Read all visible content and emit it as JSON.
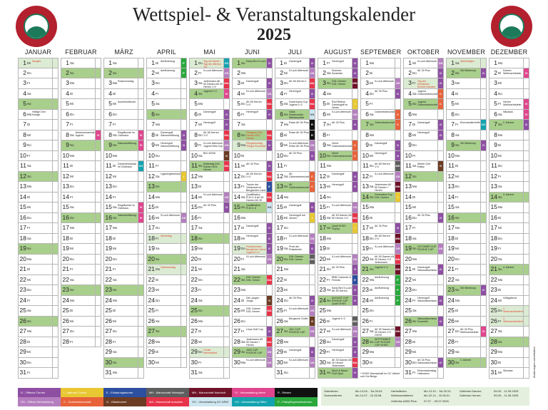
{
  "header": {
    "title": "Wettspiel- & Veranstaltungskalender",
    "year": "2025",
    "logo_text": "GOLFCLUB DREIBÄUMEN e.V."
  },
  "weekdays": [
    "So",
    "Mo",
    "Di",
    "Mi",
    "Do",
    "Fr",
    "Sa"
  ],
  "colors": {
    "sunday": "#a9cf8c",
    "holiday": "#dcebd3"
  },
  "categories": {
    "O": {
      "label": "O - Offenes Turnier",
      "color": "#8e4fa3"
    },
    "I": {
      "label": "I - Internes Turnier",
      "color": "#e8c832"
    },
    "E": {
      "label": "E - Einladungsturnier",
      "color": "#2c4fa0"
    },
    "MH": {
      "label": "MH - Mannschaft Heimspiel",
      "color": "#5e5e5e"
    },
    "MN": {
      "label": "MN - Mannschaft Nachholt",
      "color": "#6f1228"
    },
    "VI": {
      "label": "VI - Veranstaltung Intern",
      "color": "#e0468e"
    },
    "R": {
      "label": "R - Reisen",
      "color": "#111111"
    },
    "OS": {
      "label": "OS - Offene Seriewertung",
      "color": "#b57fbf"
    },
    "C": {
      "label": "C - Clubmeisterschaft",
      "color": "#e8623a"
    },
    "G": {
      "label": "G - Gästeturnier",
      "color": "#6b3b22"
    },
    "MA": {
      "label": "MA - Mannschaft auswärts",
      "color": "#e8334a"
    },
    "VG": {
      "label": "VG - Veranstaltung GV NRW",
      "color": "#cde6ef"
    },
    "VO": {
      "label": "VO - Veranstaltung Offen",
      "color": "#13a3b0"
    },
    "P": {
      "label": "P - Platzpflegemaßnahmen",
      "color": "#2aa83c"
    }
  },
  "legend_order": [
    "O",
    "I",
    "E",
    "MH",
    "MN",
    "VI",
    "R",
    "OS",
    "C",
    "G",
    "MA",
    "VG",
    "VO",
    "P"
  ],
  "months": [
    {
      "name": "JANUAR",
      "days": 31,
      "holidays": [
        1
      ],
      "events": {
        "1": [
          "Neujahr",
          "",
          true
        ],
        "6": [
          "Heilige Drei Könige",
          ""
        ]
      }
    },
    {
      "name": "FEBRUAR",
      "days": 28,
      "holidays": [],
      "events": {
        "8": [
          "Jahresversammlung Jugend",
          "VI"
        ]
      }
    },
    {
      "name": "MÄRZ",
      "days": 31,
      "holidays": [],
      "events": {
        "3": [
          "Rosenmontag",
          ""
        ],
        "5": [
          "Aschermittwoch",
          ""
        ],
        "8": [
          "Regelkunde im Clubhaus",
          "VI"
        ],
        "9": [
          "Saisoneröffnung",
          "VI"
        ],
        "11": [
          "Damenfrühstück im Clubhaus",
          "VO"
        ],
        "15": [
          "Regelkunde im Clubhaus",
          "VI"
        ],
        "16": [
          "Saisoneröffnung",
          "VI"
        ]
      }
    },
    {
      "name": "APRIL",
      "days": 30,
      "holidays": [
        18,
        21
      ],
      "events": {
        "1": [
          "Aerifizierung",
          "P"
        ],
        "2": [
          "Aerifizierung",
          "P"
        ],
        "8": [
          "Damengolf Saisoneröffnung",
          "O"
        ],
        "9": [
          "Herrengolf Saisoneröffnung",
          "O"
        ],
        "12": [
          "Ligavergleichsturnier",
          "I"
        ],
        "16": [
          "9-Loch Afterwork",
          "OS"
        ],
        "18": [
          "Karfreitag",
          "",
          true
        ],
        "21": [
          "Ostermontag",
          "",
          true
        ]
      }
    },
    {
      "name": "MAI",
      "days": 31,
      "holidays": [
        1,
        29
      ],
      "events": {
        "1": [
          "Tag der Arbeit / Tag der offenen Tür",
          "VO",
          true
        ],
        "2": [
          "9-Loch Afterwork",
          "OS"
        ],
        "3": [
          "Jedermann AK 50 Damen AK 50 Herren 1+2",
          "MA"
        ],
        "4": [
          "Jugend 1+2",
          "VI"
        ],
        "6": [
          "Damengolf",
          "O"
        ],
        "7": [
          "Herrengolf",
          "O"
        ],
        "8": [
          "AK 65 Herren 1+2",
          "MA"
        ],
        "9": [
          "9-Loch Afterwork Jugend Mini-Cup",
          "OS"
        ],
        "10": [
          "BIG-WOW",
          "G"
        ],
        "11": [
          "Muttertag DGL Damen DGL Herren",
          "MA"
        ],
        "14": [
          "9-Loch Afterwork",
          "OS"
        ],
        "15": [
          "AK 30 Plus",
          "O"
        ],
        "29": [
          "Christi Himmelfahrt",
          "",
          true
        ]
      }
    },
    {
      "name": "JUNI",
      "days": 30,
      "holidays": [
        9,
        19
      ],
      "events": {
        "1": [
          "Early Bird 9-Loch",
          "O"
        ],
        "3": [
          "Damengolf",
          "O"
        ],
        "4": [
          "9-Loch Afterwork",
          "OS"
        ],
        "5": [
          "AK 65 Herren 1+2",
          "MA"
        ],
        "6": [
          "Herrengolf",
          "O"
        ],
        "8": [
          "Pfingsten DGL Damen DGL Herren",
          "MA",
          true
        ],
        "9": [
          "Pfingstmontag Pfingst-Scramble",
          "O",
          true
        ],
        "11": [
          "AK 30 Plus",
          "O"
        ],
        "12": [
          "AK 65 Herren 1+2",
          "MA"
        ],
        "13": [
          "Turnier der Volksbank im Bergischen Land",
          "E"
        ],
        "14": [
          "Qualifikation R.M.V.-6 AK 50 Damen AK 30 Herren",
          "MA"
        ],
        "15": [
          "Qualifikation R.M.V.-6",
          "VG"
        ],
        "17": [
          "Damengolf",
          "O"
        ],
        "18": [
          "Herrengolf",
          "O"
        ],
        "19": [
          "Fronleichnam Bergischer Vierer Jugend 1+2",
          "O",
          true
        ],
        "20": [
          "9-Loch Afterwork",
          "OS"
        ],
        "22": [
          "DGL Damen DGL Herren",
          "MA"
        ],
        "24": [
          "Die Langen Jungs",
          "G"
        ],
        "25": [
          "DGL Damen DGL Herren",
          "MA"
        ],
        "27": [
          "Lions Golf Cup",
          "O"
        ],
        "28": [
          "Jedermann AK 50 Damen + Herren",
          "MA"
        ],
        "29": [
          "JUNI CUP ROOKIE CUP",
          "OS"
        ],
        "30": [
          "9-Loch Afterwork",
          "OS"
        ]
      }
    },
    {
      "name": "JULI",
      "days": 31,
      "holidays": [],
      "events": {
        "1": [
          "Damengolf",
          "O"
        ],
        "2": [
          "9-Loch Afterwork",
          "OS"
        ],
        "3": [
          "AK 65 Herren 1",
          "MA"
        ],
        "4": [
          "Herrengolf",
          "O"
        ],
        "5": [
          "Dobermann Cup Jugend 1+2",
          "MA"
        ],
        "6": [
          "Volks Solarmodule Wanderpokal",
          "VG"
        ],
        "7": [
          "Reise AK 50 Plus",
          "R"
        ],
        "8": [
          "Reise AK 50 Plus",
          "R"
        ],
        "9": [
          "9-Loch Afterwork Reise AK 50 Plus",
          "OS"
        ],
        "10": [
          "AK 30 Plus",
          "O"
        ],
        "12": [
          "AK Clubmeisterschaft",
          "C"
        ],
        "13": [
          "AK Clubmeisterschaft",
          "C"
        ],
        "15": [
          "Damengolf",
          "O"
        ],
        "16": [
          "Herrengolf mit Vierern",
          "I"
        ],
        "18": [
          "9-Loch Afterwork",
          "OS"
        ],
        "19": [
          "Preis der Präsidentin",
          "O"
        ],
        "20": [
          "DGL Damen DGL Herren",
          "MH"
        ],
        "24": [
          "AK 30 Plus",
          "O"
        ],
        "25": [
          "9-Loch Afterwork",
          "OS"
        ],
        "26": [
          "Bergische Golfer",
          "G"
        ],
        "27": [
          "JULI CUP ROOKIE CUP",
          "OS"
        ],
        "29": [
          "Damengolf",
          "O"
        ],
        "30": [
          "9-Loch Afterwork",
          "OS"
        ]
      }
    },
    {
      "name": "AUGUST",
      "days": 31,
      "holidays": [],
      "events": {
        "1": [
          "Herrengolf",
          "O"
        ],
        "2": [
          "Summer Scramble",
          "O"
        ],
        "3": [
          "DGL Damen DGL Herren",
          "MN"
        ],
        "5": [
          "Red Ribbon Damengolf im Verein",
          "I"
        ],
        "6": [
          "9-Loch Afterwork",
          "OS"
        ],
        "7": [
          "AK 30 Plus",
          "O"
        ],
        "9": [
          "Vierer Clubmeisterschaft",
          "C"
        ],
        "10": [
          "Vierer Clubmeisterschaft",
          "C"
        ],
        "12": [
          "Damengolf",
          "O"
        ],
        "13": [
          "Herrengolf",
          "O"
        ],
        "15": [
          "9-Loch Afterwork",
          "OS"
        ],
        "16": [
          "AK 50 Damen AK 50 Herren 1+2",
          "MA"
        ],
        "17": [
          "Quali GHSS Trophy",
          "I"
        ],
        "20": [
          "9-Loch Afterwork",
          "OS"
        ],
        "21": [
          "AK 30 Plus",
          "O"
        ],
        "22": [
          "BBB Customer & Friends",
          "E"
        ],
        "23": [
          "Early Bird 9-Loch AK 50 Herren",
          "O"
        ],
        "24": [
          "AUGUST CUP ROOKIE CUP Quali GHSS Trophy",
          "O"
        ],
        "26": [
          "Jugend 1+2",
          "MH"
        ],
        "27": [
          "9-Loch Afterwork",
          "OS"
        ],
        "28": [
          "Damengolf",
          "O"
        ],
        "29": [
          "Herrengolf",
          "O"
        ],
        "30": [
          "AK 30 Damen AK 30 Herren Jedermann",
          "MA"
        ],
        "31": [
          "Sport & Bauer Golf Open",
          "O"
        ]
      }
    },
    {
      "name": "SEPTEMBER",
      "days": 30,
      "holidays": [],
      "events": {
        "3": [
          "9-Loch Afterwork",
          "OS"
        ],
        "4": [
          "AK 30 Plus",
          "O"
        ],
        "6": [
          "Clubmeisterschaft",
          "C"
        ],
        "7": [
          "Clubmeisterschaft",
          "C"
        ],
        "9": [
          "Damengolf",
          "O"
        ],
        "10": [
          "Herrengolf",
          "O"
        ],
        "11": [
          "AK 65 Herren 1+2",
          "MH"
        ],
        "12": [
          "9-Loch Afterwork",
          "OS"
        ],
        "13": [
          "Jedermann AK 50 Damen + Herren",
          "MN"
        ],
        "14": [
          "Generation Cup DGL Damen",
          "I"
        ],
        "17": [
          "AK 30 Plus",
          "O"
        ],
        "18": [
          "AK 65 Herren 1+2",
          "MN"
        ],
        "19": [
          "9-Loch Afterwork",
          "OS"
        ],
        "20": [
          "AK 50 Damen AK 30 Herren 1+2 Jedermann",
          "MA"
        ],
        "21": [
          "Jugend 1+2",
          "MN"
        ],
        "22": [
          "Aerifizierung",
          "P"
        ],
        "23": [
          "Aerifizierung",
          "P"
        ],
        "24": [
          "Aerifizierung",
          "P"
        ],
        "27": [
          "AK 50 Damen AK 30 Herren 1+2 GHSS Mannschaft*",
          "MN"
        ],
        "28": [
          "SEPTEMBER CUP ROOKIE CUP GHSS Mannschaft*",
          "OS"
        ]
      }
    },
    {
      "name": "OKTOBER",
      "days": 31,
      "holidays": [
        3
      ],
      "events": {
        "1": [
          "9-Loch Afterwork",
          "OS"
        ],
        "2": [
          "AK 30 Plus",
          "O"
        ],
        "3": [
          "Tag der Deutschen Einheit Hamster Cup",
          "O",
          true
        ],
        "4": [
          "Jugend Clubmeisterschaft",
          "C"
        ],
        "5": [
          "Jugend Clubmeisterschaft",
          "C"
        ],
        "7": [
          "Damengolf",
          "O"
        ],
        "8": [
          "Herrengolf",
          "O"
        ],
        "11": [
          "Winter Golf Rallye",
          "G"
        ],
        "16": [
          "AK 30 Plus",
          "O"
        ],
        "19": [
          "OCTOBER CUP ROOKIE CUP",
          "OS"
        ],
        "21": [
          "Damengolf Saisonabschluss",
          "O"
        ],
        "24": [
          "Herrengolf Saisonabschluss",
          "O"
        ],
        "26": [
          "Saisonabschluss Scramble",
          "O"
        ],
        "30": [
          "AK 30 Plus Saisonabschluss",
          "O"
        ],
        "31": [
          "Reformationstag Halloween",
          ""
        ]
      }
    },
    {
      "name": "NOVEMBER",
      "days": 30,
      "holidays": [
        1
      ],
      "events": {
        "1": [
          "Allerheiligen",
          "",
          true
        ],
        "2": [
          "3/6 Wintercup",
          "O"
        ],
        "7": [
          "Ehrenamtlertreffen",
          "VO"
        ],
        "9": [
          "3/6 Wintercup",
          "O"
        ],
        "23": [
          "3/6 Wintercup",
          "O"
        ],
        "27": [
          "AK 30 Plus Weihnachtsfeier",
          "VI"
        ],
        "30": [
          "1. Advent",
          ""
        ]
      }
    },
    {
      "name": "DEZEMBER",
      "days": 31,
      "holidays": [
        25,
        26
      ],
      "events": {
        "2": [
          "Damen Weihnachtsfeier",
          "VI"
        ],
        "5": [
          "Herren Weihnachtsfeier",
          "VI"
        ],
        "6": [
          "Nikolaus",
          "VI"
        ],
        "7": [
          "2. Advent",
          "O"
        ],
        "14": [
          "3. Advent",
          ""
        ],
        "21": [
          "4. Advent",
          ""
        ],
        "24": [
          "Heiligabend",
          ""
        ],
        "25": [
          "1. Weihnachtsfeiertag",
          "",
          true
        ],
        "26": [
          "2. Weihnachtsfeiertag",
          "",
          true
        ],
        "31": [
          "Silvester",
          ""
        ]
      }
    }
  ],
  "ferien": [
    {
      "label": "Osterferien",
      "range": "Mo 14.04. - Sa 26.04."
    },
    {
      "label": "Herbstferien",
      "range": "Mo 13.10. - Sa 25.10."
    },
    {
      "label": "Golfreise Damen:",
      "range": "09.05. - 11.05.2025"
    },
    {
      "label": "Sommerferien",
      "range": "Mo 14.07. - Di 26.08."
    },
    {
      "label": "Weihnachtsferien",
      "range": "Mo 22.12. - Di 06.01."
    },
    {
      "label": "Golfreise Herren:",
      "range": "09.05. - 11.05.2025"
    },
    {
      "label": "",
      "range": ""
    },
    {
      "label": "",
      "range": ""
    },
    {
      "label": "",
      "range": ""
    },
    {
      "label": "",
      "range": ""
    },
    {
      "label": "Golfreise AK50 Plus:",
      "range": "07.07. - 09.07.2025"
    }
  ],
  "footnote": "* GHSS Mannschaft im GC Velbert und Gut Berge",
  "side_note": "Änderungen vorbehalten"
}
